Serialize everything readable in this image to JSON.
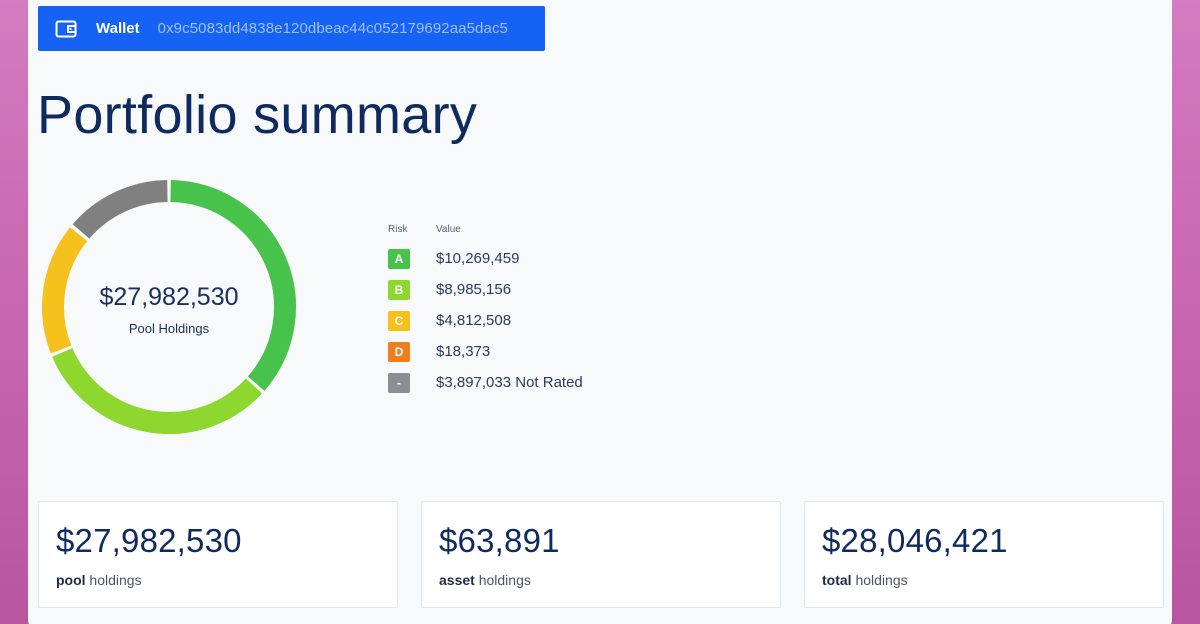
{
  "wallet": {
    "label": "Wallet",
    "address": "0x9c5083dd4838e120dbeac44c052179692aa5dac5",
    "icon": "wallet-icon"
  },
  "page": {
    "title": "Portfolio summary"
  },
  "donut": {
    "total": "$27,982,530",
    "caption_bold": "Pool",
    "caption_rest": " Holdings",
    "segments": [
      {
        "name": "A",
        "value": 10269459,
        "color": "#47c34b"
      },
      {
        "name": "B",
        "value": 8985156,
        "color": "#8ed72e"
      },
      {
        "name": "C",
        "value": 4812508,
        "color": "#f6c11c"
      },
      {
        "name": "D",
        "value": 18373,
        "color": "#ee7e1e"
      },
      {
        "name": "-",
        "value": 3897033,
        "color": "#808080"
      }
    ]
  },
  "legend": {
    "header_risk": "Risk",
    "header_value": "Value",
    "rows": [
      {
        "risk": "A",
        "value": "$10,269,459",
        "color": "#47c34b"
      },
      {
        "risk": "B",
        "value": "$8,985,156",
        "color": "#8ed72e"
      },
      {
        "risk": "C",
        "value": "$4,812,508",
        "color": "#f6c11c"
      },
      {
        "risk": "D",
        "value": "$18,373",
        "color": "#ee7e1e"
      },
      {
        "risk": "-",
        "value": "$3,897,033 Not Rated",
        "color": "#8b8f94"
      }
    ]
  },
  "cards": [
    {
      "value": "$27,982,530",
      "label_bold": "pool",
      "label_rest": " holdings"
    },
    {
      "value": "$63,891",
      "label_bold": "asset",
      "label_rest": " holdings"
    },
    {
      "value": "$28,046,421",
      "label_bold": "total",
      "label_rest": " holdings"
    }
  ]
}
